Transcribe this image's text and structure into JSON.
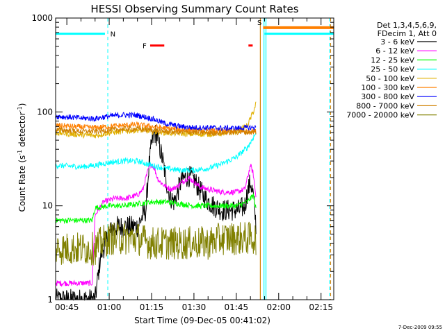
{
  "chart_data": {
    "type": "line",
    "title": "HESSI Observing Summary Count Rates",
    "xlabel": "Start Time (09-Dec-05 00:41:02)",
    "ylabel_main": "Count Rate (s",
    "ylabel_sup": "-1",
    "ylabel_mid": " detector",
    "ylabel_close": ")",
    "y_scale": "log",
    "ylim": [
      1,
      1000
    ],
    "xlim_minutes": [
      41.03,
      139.5
    ],
    "x_ticks": [
      {
        "label": "00:45",
        "minutes": 45
      },
      {
        "label": "01:00",
        "minutes": 60
      },
      {
        "label": "01:15",
        "minutes": 75
      },
      {
        "label": "01:30",
        "minutes": 90
      },
      {
        "label": "01:45",
        "minutes": 105
      },
      {
        "label": "02:00",
        "minutes": 120
      },
      {
        "label": "02:15",
        "minutes": 135
      }
    ],
    "y_ticks": [
      {
        "label": "1",
        "value": 1
      },
      {
        "label": "10",
        "value": 10
      },
      {
        "label": "100",
        "value": 100
      },
      {
        "label": "1000",
        "value": 1000
      }
    ],
    "legend_header": [
      "Det 1,3,4,5,6,9,",
      "FDecim 1, Att 0"
    ],
    "legend_position": "outside-right",
    "series": [
      {
        "name": "3 - 6 keV",
        "color": "#000000",
        "points": [
          [
            41,
            1
          ],
          [
            55,
            1
          ],
          [
            57,
            3
          ],
          [
            60,
            5
          ],
          [
            62,
            6
          ],
          [
            66,
            6
          ],
          [
            70,
            6
          ],
          [
            72,
            8
          ],
          [
            73,
            9
          ],
          [
            74,
            25
          ],
          [
            75,
            45
          ],
          [
            76,
            60
          ],
          [
            77,
            55
          ],
          [
            78,
            40
          ],
          [
            79,
            30
          ],
          [
            80,
            20
          ],
          [
            81,
            14
          ],
          [
            82,
            12
          ],
          [
            83,
            11
          ],
          [
            84,
            13
          ],
          [
            85,
            17
          ],
          [
            86,
            19
          ],
          [
            88,
            21
          ],
          [
            90,
            19
          ],
          [
            92,
            15
          ],
          [
            94,
            12
          ],
          [
            97,
            10
          ],
          [
            100,
            9
          ],
          [
            103,
            9
          ],
          [
            106,
            9
          ],
          [
            108,
            10
          ],
          [
            109,
            14
          ],
          [
            110,
            18
          ],
          [
            111,
            13
          ],
          [
            112,
            6
          ]
        ]
      },
      {
        "name": "6 - 12 keV",
        "color": "#ff00ff",
        "points": [
          [
            41,
            1.5
          ],
          [
            54,
            1.5
          ],
          [
            55,
            8
          ],
          [
            58,
            11
          ],
          [
            62,
            12
          ],
          [
            66,
            12
          ],
          [
            70,
            13
          ],
          [
            72,
            15
          ],
          [
            73,
            20
          ],
          [
            74,
            25
          ],
          [
            75,
            28
          ],
          [
            76,
            25
          ],
          [
            77,
            20
          ],
          [
            78,
            18
          ],
          [
            80,
            16
          ],
          [
            82,
            15
          ],
          [
            84,
            16
          ],
          [
            86,
            18
          ],
          [
            88,
            20
          ],
          [
            90,
            18
          ],
          [
            92,
            16
          ],
          [
            95,
            15
          ],
          [
            100,
            14
          ],
          [
            105,
            14
          ],
          [
            108,
            15
          ],
          [
            109,
            20
          ],
          [
            110,
            27
          ],
          [
            111,
            22
          ],
          [
            112,
            12
          ]
        ]
      },
      {
        "name": "12 - 25 keV",
        "color": "#00ff00",
        "points": [
          [
            41,
            7
          ],
          [
            54,
            7
          ],
          [
            55,
            9.5
          ],
          [
            60,
            10
          ],
          [
            65,
            10
          ],
          [
            70,
            10.5
          ],
          [
            75,
            11
          ],
          [
            80,
            11
          ],
          [
            85,
            10.5
          ],
          [
            90,
            10
          ],
          [
            95,
            10
          ],
          [
            100,
            10
          ],
          [
            105,
            10
          ],
          [
            109,
            11
          ],
          [
            111,
            13
          ],
          [
            112,
            9
          ]
        ]
      },
      {
        "name": "25 - 50 keV",
        "color": "#00ffff",
        "points": [
          [
            41,
            27
          ],
          [
            50,
            26
          ],
          [
            55,
            27
          ],
          [
            60,
            29
          ],
          [
            65,
            30
          ],
          [
            70,
            30
          ],
          [
            75,
            27
          ],
          [
            80,
            25
          ],
          [
            85,
            24
          ],
          [
            90,
            24
          ],
          [
            95,
            25
          ],
          [
            100,
            28
          ],
          [
            105,
            33
          ],
          [
            109,
            42
          ],
          [
            112,
            60
          ]
        ]
      },
      {
        "name": "50 - 100 keV",
        "color": "#e0b000",
        "points": [
          [
            41,
            60
          ],
          [
            50,
            57
          ],
          [
            55,
            56
          ],
          [
            60,
            60
          ],
          [
            65,
            62
          ],
          [
            70,
            64
          ],
          [
            75,
            62
          ],
          [
            80,
            60
          ],
          [
            85,
            59
          ],
          [
            90,
            58
          ],
          [
            95,
            58
          ],
          [
            100,
            59
          ],
          [
            105,
            61
          ],
          [
            109,
            72
          ],
          [
            111,
            100
          ],
          [
            112,
            125
          ]
        ]
      },
      {
        "name": "100 - 300 keV",
        "color": "#ff8000",
        "points": [
          [
            41,
            72
          ],
          [
            50,
            69
          ],
          [
            55,
            68
          ],
          [
            60,
            70
          ],
          [
            65,
            72
          ],
          [
            70,
            73
          ],
          [
            75,
            70
          ],
          [
            80,
            67
          ],
          [
            85,
            65
          ],
          [
            90,
            64
          ],
          [
            95,
            63
          ],
          [
            100,
            63
          ],
          [
            105,
            63
          ],
          [
            110,
            62
          ],
          [
            112,
            62
          ]
        ]
      },
      {
        "name": "300 - 800 keV",
        "color": "#0000ff",
        "points": [
          [
            41,
            90
          ],
          [
            50,
            86
          ],
          [
            55,
            85
          ],
          [
            60,
            90
          ],
          [
            65,
            93
          ],
          [
            70,
            92
          ],
          [
            75,
            85
          ],
          [
            80,
            75
          ],
          [
            85,
            70
          ],
          [
            90,
            68
          ],
          [
            95,
            68
          ],
          [
            100,
            67
          ],
          [
            105,
            67
          ],
          [
            110,
            68
          ],
          [
            112,
            68
          ]
        ]
      },
      {
        "name": "800 - 7000 keV",
        "color": "#d08000",
        "points": [
          [
            41,
            65
          ],
          [
            50,
            62
          ],
          [
            55,
            62
          ],
          [
            60,
            64
          ],
          [
            65,
            66
          ],
          [
            70,
            66
          ],
          [
            75,
            64
          ],
          [
            80,
            62
          ],
          [
            85,
            61
          ],
          [
            90,
            61
          ],
          [
            95,
            60
          ],
          [
            100,
            60
          ],
          [
            105,
            61
          ],
          [
            110,
            61
          ],
          [
            112,
            61
          ]
        ]
      },
      {
        "name": "7000 - 20000 keV",
        "color": "#808000",
        "points": [
          [
            41,
            3.5
          ],
          [
            55,
            3.5
          ],
          [
            57,
            4
          ],
          [
            60,
            4.5
          ],
          [
            65,
            4.5
          ],
          [
            70,
            4.5
          ],
          [
            75,
            4
          ],
          [
            80,
            4
          ],
          [
            85,
            4
          ],
          [
            90,
            4
          ],
          [
            95,
            4
          ],
          [
            100,
            4.5
          ],
          [
            105,
            4.5
          ],
          [
            110,
            4.5
          ],
          [
            112,
            4.5
          ]
        ]
      }
    ],
    "markers": [
      {
        "label": "N",
        "color": "#00ffff",
        "minutes": 59.5
      },
      {
        "label": "F",
        "color": "#ff0000",
        "minutes": 74
      },
      {
        "label": "S",
        "color": "#e08000",
        "minutes": 113.5
      }
    ]
  },
  "stamp": "7-Dec-2009 09:55"
}
